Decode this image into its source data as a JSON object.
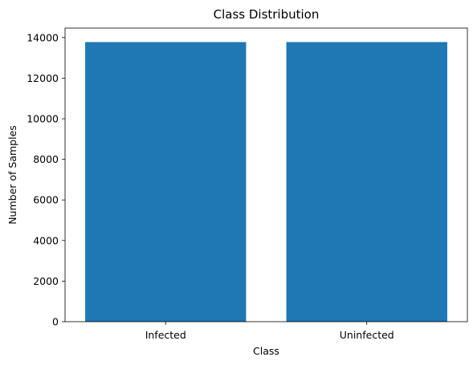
{
  "chart_data": {
    "type": "bar",
    "title": "Class Distribution",
    "xlabel": "Class",
    "ylabel": "Number of Samples",
    "categories": [
      "Infected",
      "Uninfected"
    ],
    "values": [
      13779,
      13779
    ],
    "ylim": [
      0,
      14469
    ],
    "yticks": [
      0,
      2000,
      4000,
      6000,
      8000,
      10000,
      12000,
      14000
    ],
    "bar_color": "#1f77b4",
    "grid": false,
    "legend": "none"
  }
}
